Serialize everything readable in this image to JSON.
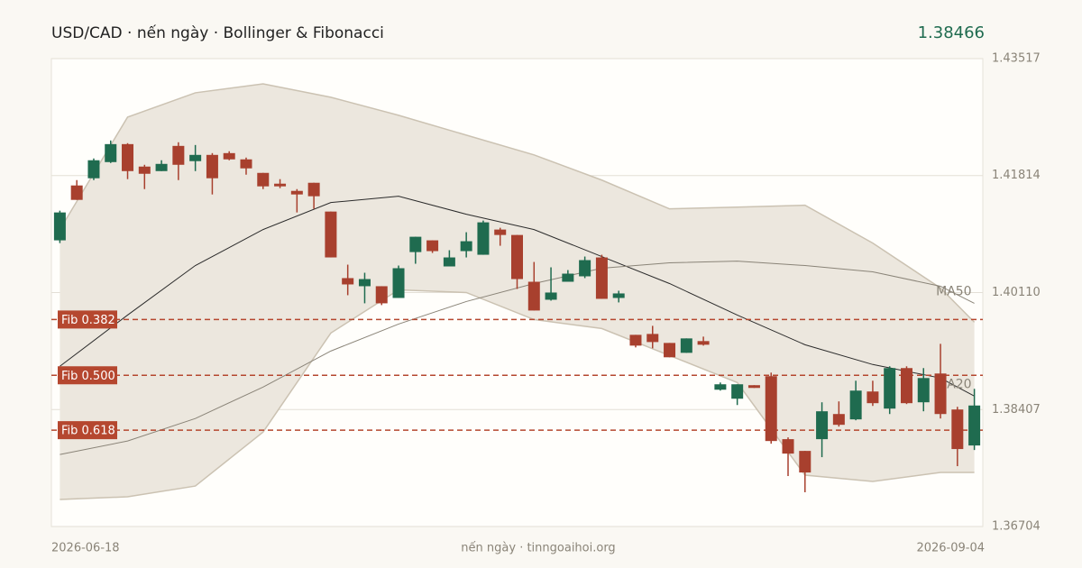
{
  "chart_data": {
    "type": "candlestick",
    "title": "USD/CAD · nến ngày · Bollinger & Fibonacci",
    "footer": "nến ngày · tinngoaihoi.org",
    "categories": [
      "2026-06-18",
      null,
      null,
      null,
      null,
      null,
      null,
      null,
      null,
      null,
      null,
      null,
      null,
      null,
      null,
      null,
      null,
      null,
      null,
      null,
      null,
      null,
      null,
      null,
      null,
      null,
      null,
      null,
      null,
      null,
      null,
      null,
      null,
      null,
      null,
      null,
      null,
      null,
      null,
      null,
      null,
      null,
      null,
      null,
      null,
      null,
      null,
      null,
      null,
      null,
      null,
      null,
      null,
      null,
      "2026-09-04"
    ],
    "open": [
      1.40871,
      1.4167,
      1.41775,
      1.4201,
      1.42272,
      1.41945,
      1.41879,
      1.42246,
      1.42024,
      1.42115,
      1.42141,
      1.4205,
      1.41853,
      1.41696,
      1.41591,
      1.41709,
      1.4129,
      1.40321,
      1.40203,
      1.40203,
      1.40032,
      1.407,
      1.40871,
      1.40491,
      1.40714,
      1.40661,
      1.41028,
      1.40949,
      1.40268,
      1.40006,
      1.40268,
      1.40347,
      1.40622,
      1.40032,
      1.39495,
      1.39508,
      1.39377,
      1.39233,
      1.39404,
      1.38696,
      1.38565,
      1.38762,
      1.38893,
      1.37976,
      1.37805,
      1.37976,
      1.38342,
      1.38264,
      1.3867,
      1.38421,
      1.39011,
      1.38513,
      1.38932,
      1.38408,
      1.37884
    ],
    "high": [
      1.41303,
      1.41748,
      1.42063,
      1.42325,
      1.42286,
      1.41971,
      1.42037,
      1.42299,
      1.42259,
      1.42141,
      1.42168,
      1.42076,
      1.41853,
      1.41762,
      1.41617,
      1.41709,
      1.4129,
      1.40517,
      1.40399,
      1.40203,
      1.40504,
      1.40923,
      1.40871,
      1.40727,
      1.40989,
      1.41159,
      1.41054,
      1.40949,
      1.40556,
      1.40478,
      1.40438,
      1.40635,
      1.40661,
      1.40137,
      1.39495,
      1.39626,
      1.39377,
      1.39443,
      1.39469,
      1.38801,
      1.38775,
      1.38762,
      1.38945,
      1.38002,
      1.37805,
      1.38513,
      1.38526,
      1.38827,
      1.38827,
      1.39037,
      1.39037,
      1.39011,
      1.39364,
      1.38447,
      1.38709
    ],
    "low": [
      1.40831,
      1.4146,
      1.41748,
      1.41997,
      1.41762,
      1.41617,
      1.41879,
      1.41748,
      1.41879,
      1.41539,
      1.42037,
      1.41827,
      1.41617,
      1.41631,
      1.41277,
      1.41329,
      1.40622,
      1.40072,
      1.39954,
      1.39928,
      1.40032,
      1.4053,
      1.40687,
      1.40491,
      1.40622,
      1.40661,
      1.40792,
      1.40163,
      1.39849,
      1.39993,
      1.40268,
      1.40321,
      1.40019,
      1.39967,
      1.39312,
      1.39299,
      1.39168,
      1.39233,
      1.39338,
      1.38683,
      1.38473,
      1.38722,
      1.3791,
      1.37439,
      1.37203,
      1.37714,
      1.38159,
      1.38251,
      1.3846,
      1.38342,
      1.38487,
      1.38382,
      1.38277,
      1.37583,
      1.37818
    ],
    "close": [
      1.41277,
      1.4146,
      1.42037,
      1.42272,
      1.41879,
      1.4184,
      1.41984,
      1.41971,
      1.42115,
      1.41775,
      1.4205,
      1.41919,
      1.41657,
      1.41657,
      1.41539,
      1.41513,
      1.40622,
      1.40229,
      1.40307,
      1.39954,
      1.40465,
      1.40923,
      1.40714,
      1.40622,
      1.40858,
      1.41133,
      1.40949,
      1.40307,
      1.39849,
      1.40111,
      1.40386,
      1.40583,
      1.40019,
      1.40098,
      1.39338,
      1.3939,
      1.39168,
      1.39443,
      1.39351,
      1.38775,
      1.38775,
      1.38722,
      1.37949,
      1.37766,
      1.37491,
      1.38382,
      1.38185,
      1.38683,
      1.385,
      1.39011,
      1.385,
      1.38866,
      1.38342,
      1.37832,
      1.38466
    ],
    "up_color": "#1f6b4f",
    "down_color": "#a8402e",
    "bollinger": {
      "x": [
        0,
        4,
        8,
        12,
        16,
        20,
        24,
        28,
        32,
        36,
        40,
        44,
        48,
        52,
        54
      ],
      "upper": [
        1.41028,
        1.42665,
        1.43019,
        1.4315,
        1.42954,
        1.42692,
        1.42403,
        1.42115,
        1.41748,
        1.41329,
        1.41355,
        1.41382,
        1.40831,
        1.40176,
        1.39679
      ],
      "lower": [
        1.37098,
        1.37137,
        1.37294,
        1.3808,
        1.39521,
        1.4015,
        1.40111,
        1.39718,
        1.39587,
        1.39194,
        1.38801,
        1.37452,
        1.3736,
        1.37491,
        1.37491
      ],
      "color": "#ece7de",
      "edge_color": "#cbc2b2"
    },
    "moving_averages": [
      {
        "name": "MA20",
        "color": "#2b2b2b",
        "x": [
          0,
          4,
          8,
          12,
          16,
          20,
          24,
          28,
          32,
          36,
          40,
          44,
          48,
          52,
          54
        ],
        "values": [
          1.39037,
          1.39783,
          1.40504,
          1.41028,
          1.41421,
          1.41513,
          1.41251,
          1.41028,
          1.40635,
          1.40242,
          1.39783,
          1.39351,
          1.39063,
          1.38866,
          1.38604
        ]
      },
      {
        "name": "MA50",
        "color": "#8a8478",
        "x": [
          0,
          4,
          8,
          12,
          16,
          20,
          24,
          28,
          32,
          36,
          40,
          44,
          48,
          52,
          54
        ],
        "values": [
          1.37753,
          1.37949,
          1.38277,
          1.38735,
          1.39259,
          1.39652,
          1.3998,
          1.40242,
          1.40465,
          1.40543,
          1.40569,
          1.40504,
          1.40412,
          1.40203,
          1.39954
        ]
      }
    ],
    "fib_levels": [
      {
        "label": "Fib 0.382",
        "value": 1.39718
      },
      {
        "label": "Fib 0.500",
        "value": 1.38906
      },
      {
        "label": "Fib 0.618",
        "value": 1.38107
      }
    ],
    "fib_color": "#b5472f",
    "ylim": [
      1.36704,
      1.43517
    ],
    "yticks": [
      1.43517,
      1.41814,
      {
        "value": 1.4011,
        "label": "1.40110"
      },
      1.38407,
      1.36704
    ],
    "grid": true
  }
}
